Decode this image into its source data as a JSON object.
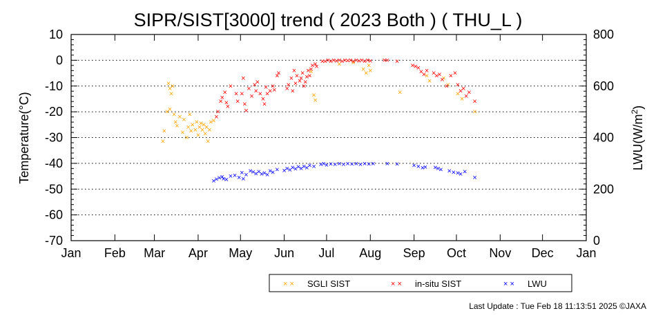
{
  "chart_data": {
    "type": "scatter",
    "title": "SIPR/SIST[3000] trend ( 2023 Both ) ( THU_L )",
    "ylabel": "Temperature(°C)",
    "y2label_base": "LWU(W/m",
    "y2label_sup": "2",
    "y2label_tail": ")",
    "ylim": [
      -70,
      10
    ],
    "y2lim": [
      0,
      800
    ],
    "yticks": [
      10,
      0,
      -10,
      -20,
      -30,
      -40,
      -50,
      -60,
      -70
    ],
    "y2ticks": [
      800,
      600,
      400,
      200,
      0
    ],
    "xticks": [
      "Jan",
      "Feb",
      "Mar",
      "Apr",
      "May",
      "Jun",
      "Jul",
      "Aug",
      "Sep",
      "Oct",
      "Nov",
      "Dec",
      "Jan"
    ],
    "grid": "dotted horizontal at major y ticks",
    "legend_position": "bottom",
    "series": [
      {
        "name": "SGLI SIST",
        "color": "#ffa500",
        "axis": "left",
        "points": [
          [
            "Mar 7",
            -31.5
          ],
          [
            "Mar 8",
            -27.5
          ],
          [
            "Mar 10",
            -20
          ],
          [
            "Mar 11",
            -9
          ],
          [
            "Mar 12",
            -19
          ],
          [
            "Mar 12",
            -11
          ],
          [
            "Mar 13",
            -13
          ],
          [
            "Mar 14",
            -10
          ],
          [
            "Mar 15",
            -21
          ],
          [
            "Mar 16",
            -24
          ],
          [
            "Mar 17",
            -25.5
          ],
          [
            "Mar 19",
            -22
          ],
          [
            "Mar 21",
            -28
          ],
          [
            "Mar 22",
            -23
          ],
          [
            "Mar 24",
            -30
          ],
          [
            "Mar 25",
            -26
          ],
          [
            "Mar 26",
            -21
          ],
          [
            "Mar 27",
            -27.5
          ],
          [
            "Mar 28",
            -25
          ],
          [
            "Mar 30",
            -27
          ],
          [
            "Mar 31",
            -24
          ],
          [
            "Apr 1",
            -29
          ],
          [
            "Apr 2",
            -26
          ],
          [
            "Apr 3",
            -24.5
          ],
          [
            "Apr 4",
            -27
          ],
          [
            "Apr 5",
            -25
          ],
          [
            "Apr 6",
            -28.5
          ],
          [
            "Apr 7",
            -26
          ],
          [
            "Apr 8",
            -31.5
          ],
          [
            "Apr 9",
            -27
          ],
          [
            "Apr 10",
            -24
          ],
          [
            "Apr 12",
            -23.5
          ],
          [
            "Jun 20",
            -4.5
          ],
          [
            "Jun 22",
            -13.5
          ],
          [
            "Jun 23",
            -15.5
          ],
          [
            "Jul 10",
            -1.5
          ],
          [
            "Jul 20",
            -1
          ],
          [
            "Jul 27",
            -3.5
          ],
          [
            "Jul 29",
            -5
          ],
          [
            "Jul 31",
            -2
          ],
          [
            "Aug 1",
            -4
          ],
          [
            "Aug 22",
            -12.5
          ],
          [
            "Sep 10",
            -6
          ],
          [
            "Sep 12",
            -8
          ],
          [
            "Sep 22",
            -7
          ],
          [
            "Sep 25",
            -9.5
          ],
          [
            "Oct 2",
            -13
          ],
          [
            "Oct 5",
            -15
          ],
          [
            "Oct 14",
            -20
          ]
        ]
      },
      {
        "name": "in-situ SIST",
        "color": "#ff0000",
        "axis": "left",
        "points": [
          [
            "Apr 14",
            -22
          ],
          [
            "Apr 15",
            -20
          ],
          [
            "Apr 17",
            -16
          ],
          [
            "Apr 18",
            -14.5
          ],
          [
            "Apr 20",
            -12.5
          ],
          [
            "Apr 21",
            -16.5
          ],
          [
            "Apr 22",
            -18
          ],
          [
            "Apr 24",
            -10
          ],
          [
            "Apr 28",
            -13
          ],
          [
            "Apr 29",
            -16
          ],
          [
            "May 2",
            -13
          ],
          [
            "May 3",
            -7
          ],
          [
            "May 4",
            -17
          ],
          [
            "May 5",
            -19.5
          ],
          [
            "May 7",
            -11
          ],
          [
            "May 9",
            -14
          ],
          [
            "May 11",
            -9.5
          ],
          [
            "May 12",
            -12
          ],
          [
            "May 13",
            -8.5
          ],
          [
            "May 15",
            -13
          ],
          [
            "May 17",
            -15
          ],
          [
            "May 18",
            -17
          ],
          [
            "May 19",
            -10.5
          ],
          [
            "May 20",
            -13
          ],
          [
            "May 22",
            -12
          ],
          [
            "May 24",
            -10
          ],
          [
            "May 25",
            -11.5
          ],
          [
            "May 27",
            -6
          ],
          [
            "May 28",
            -5
          ],
          [
            "Jun 3",
            -11
          ],
          [
            "Jun 4",
            -9.5
          ],
          [
            "Jun 6",
            -7
          ],
          [
            "Jun 7",
            -12
          ],
          [
            "Jun 8",
            -4
          ],
          [
            "Jun 9",
            -9
          ],
          [
            "Jun 10",
            -6
          ],
          [
            "Jun 12",
            -8
          ],
          [
            "Jun 13",
            -7
          ],
          [
            "Jun 14",
            -5
          ],
          [
            "Jun 15",
            -10
          ],
          [
            "Jun 16",
            -8.5
          ],
          [
            "Jun 17",
            -6.5
          ],
          [
            "Jun 18",
            -4
          ],
          [
            "Jun 19",
            -6
          ],
          [
            "Jun 20",
            -3.5
          ],
          [
            "Jun 21",
            -2
          ],
          [
            "Jun 23",
            -1.5
          ],
          [
            "Jun 24",
            -2.5
          ],
          [
            "Jun 28",
            -0.5
          ],
          [
            "Jun 30",
            -0.5
          ],
          [
            "Jul 2",
            0
          ],
          [
            "Jul 4",
            -0.5
          ],
          [
            "Jul 6",
            0
          ],
          [
            "Jul 8",
            -0.3
          ],
          [
            "Jul 10",
            0
          ],
          [
            "Jul 12",
            -0.5
          ],
          [
            "Jul 14",
            0
          ],
          [
            "Jul 16",
            -0.2
          ],
          [
            "Jul 18",
            0
          ],
          [
            "Jul 20",
            -0.5
          ],
          [
            "Jul 22",
            0
          ],
          [
            "Jul 24",
            -0.3
          ],
          [
            "Jul 26",
            0
          ],
          [
            "Jul 28",
            -0.5
          ],
          [
            "Jul 30",
            0
          ],
          [
            "Aug 1",
            -0.3
          ],
          [
            "Aug 11",
            0
          ],
          [
            "Aug 13",
            0
          ],
          [
            "Aug 20",
            -0.5
          ],
          [
            "Aug 31",
            -2
          ],
          [
            "Sep 2",
            -2.5
          ],
          [
            "Sep 4",
            -3
          ],
          [
            "Sep 6",
            -4.5
          ],
          [
            "Sep 8",
            -5.5
          ],
          [
            "Sep 10",
            -4
          ],
          [
            "Sep 15",
            -5
          ],
          [
            "Sep 17",
            -6
          ],
          [
            "Sep 19",
            -5.5
          ],
          [
            "Sep 21",
            -7.5
          ],
          [
            "Sep 24",
            -10
          ],
          [
            "Sep 27",
            -6
          ],
          [
            "Sep 30",
            -5
          ],
          [
            "Oct 2",
            -9.5
          ],
          [
            "Oct 4",
            -12
          ],
          [
            "Oct 6",
            -11
          ],
          [
            "Oct 8",
            -14
          ],
          [
            "Oct 10",
            -12.5
          ],
          [
            "Oct 14",
            -16
          ]
        ]
      },
      {
        "name": "LWU",
        "color": "#0000ff",
        "axis": "right",
        "points": [
          [
            "Apr 12",
            232
          ],
          [
            "Apr 14",
            238
          ],
          [
            "Apr 16",
            243
          ],
          [
            "Apr 18",
            248
          ],
          [
            "Apr 19",
            240
          ],
          [
            "Apr 21",
            237
          ],
          [
            "Apr 24",
            250
          ],
          [
            "Apr 27",
            253
          ],
          [
            "Apr 30",
            245
          ],
          [
            "May 2",
            263
          ],
          [
            "May 3",
            240
          ],
          [
            "May 5",
            256
          ],
          [
            "May 8",
            270
          ],
          [
            "May 10",
            266
          ],
          [
            "May 12",
            260
          ],
          [
            "May 14",
            268
          ],
          [
            "May 16",
            258
          ],
          [
            "May 18",
            262
          ],
          [
            "May 20",
            255
          ],
          [
            "May 22",
            270
          ],
          [
            "May 24",
            265
          ],
          [
            "May 27",
            275
          ],
          [
            "Jun 1",
            271
          ],
          [
            "Jun 3",
            279
          ],
          [
            "Jun 5",
            274
          ],
          [
            "Jun 7",
            283
          ],
          [
            "Jun 9",
            278
          ],
          [
            "Jun 11",
            286
          ],
          [
            "Jun 13",
            280
          ],
          [
            "Jun 15",
            288
          ],
          [
            "Jun 17",
            282
          ],
          [
            "Jun 19",
            291
          ],
          [
            "Jun 22",
            287
          ],
          [
            "Jun 27",
            295
          ],
          [
            "Jun 29",
            298
          ],
          [
            "Jul 1",
            293
          ],
          [
            "Jul 4",
            297
          ],
          [
            "Jul 7",
            296
          ],
          [
            "Jul 10",
            298
          ],
          [
            "Jul 13",
            296
          ],
          [
            "Jul 16",
            298
          ],
          [
            "Jul 19",
            297
          ],
          [
            "Jul 22",
            298
          ],
          [
            "Jul 25",
            296
          ],
          [
            "Jul 28",
            298
          ],
          [
            "Jul 31",
            297
          ],
          [
            "Aug 3",
            298
          ],
          [
            "Aug 13",
            298
          ],
          [
            "Aug 20",
            297
          ],
          [
            "Sep 1",
            292
          ],
          [
            "Sep 4",
            288
          ],
          [
            "Sep 7",
            282
          ],
          [
            "Sep 9",
            285
          ],
          [
            "Sep 16",
            284
          ],
          [
            "Sep 18",
            280
          ],
          [
            "Sep 20",
            275
          ],
          [
            "Sep 26",
            270
          ],
          [
            "Sep 29",
            265
          ],
          [
            "Oct 2",
            262
          ],
          [
            "Oct 4",
            258
          ],
          [
            "Oct 7",
            268
          ],
          [
            "Oct 14",
            245
          ]
        ]
      }
    ]
  },
  "footer": {
    "last_update": "Last Update : Tue Feb 18 11:13:51 2025  ©JAXA"
  }
}
